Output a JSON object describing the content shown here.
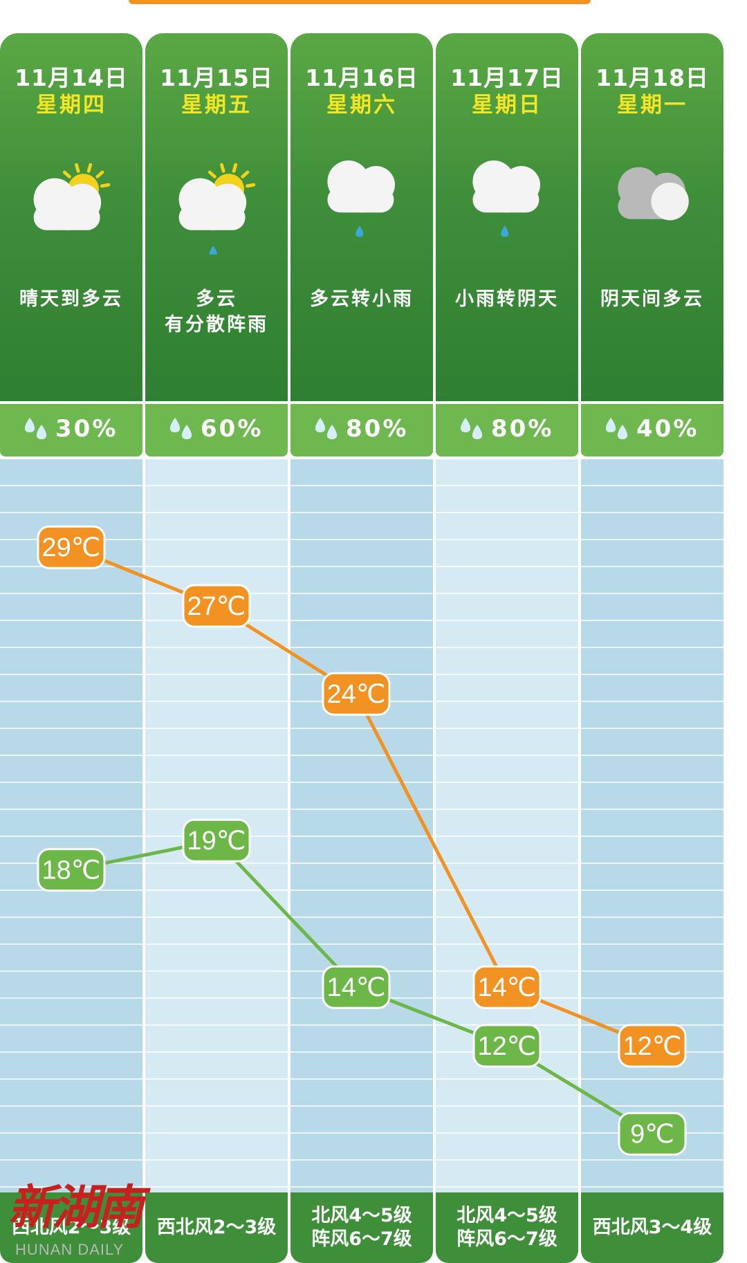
{
  "days": [
    {
      "date": "11月14日",
      "weekday": "星期四",
      "condition": [
        "晴天到多云"
      ],
      "icon": "sun-cloud-icon",
      "rain_chance": "30%",
      "wind": [
        "西北风2～3级"
      ]
    },
    {
      "date": "11月15日",
      "weekday": "星期五",
      "condition": [
        "多云",
        "有分散阵雨"
      ],
      "icon": "sun-cloud-rain-icon",
      "rain_chance": "60%",
      "wind": [
        "西北风2～3级"
      ]
    },
    {
      "date": "11月16日",
      "weekday": "星期六",
      "condition": [
        "多云转小雨"
      ],
      "icon": "cloud-rain-icon",
      "rain_chance": "80%",
      "wind": [
        "北风4～5级",
        "阵风6～7级"
      ]
    },
    {
      "date": "11月17日",
      "weekday": "星期日",
      "condition": [
        "小雨转阴天"
      ],
      "icon": "cloud-rain-icon",
      "rain_chance": "80%",
      "wind": [
        "北风4～5级",
        "阵风6～7级"
      ]
    },
    {
      "date": "11月18日",
      "weekday": "星期一",
      "condition": [
        "阴天间多云"
      ],
      "icon": "overcast-cloud-icon",
      "rain_chance": "40%",
      "wind": [
        "西北风3～4级"
      ]
    }
  ],
  "chart_data": {
    "type": "line",
    "categories": [
      "11月14日",
      "11月15日",
      "11月16日",
      "11月17日",
      "11月18日"
    ],
    "series": [
      {
        "values": [
          29,
          27,
          24,
          14,
          12
        ],
        "color": "#f29222"
      },
      {
        "values": [
          18,
          19,
          14,
          12,
          9
        ],
        "color": "#6db648"
      }
    ],
    "unit": "℃",
    "ylim": [
      7,
      32
    ],
    "grid": true
  },
  "colors": {
    "header_green": "#3f8e3a",
    "weekday_yellow": "#f5e623",
    "rain_bar_green": "#6fb84f",
    "high_orange": "#f29222",
    "low_green": "#6db648"
  },
  "watermark": {
    "logo": "新湖南",
    "subtitle": "HUNAN DAILY"
  }
}
